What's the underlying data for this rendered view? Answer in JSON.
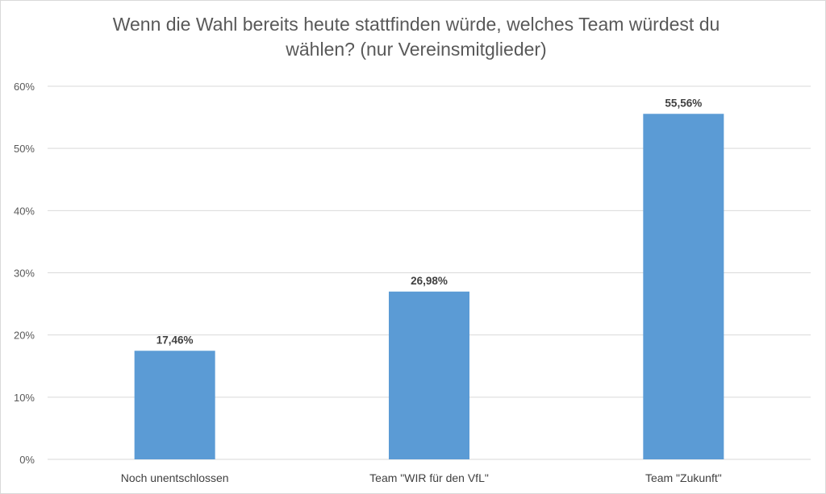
{
  "chart_data": {
    "type": "bar",
    "title": "Wenn die Wahl bereits heute stattfinden würde, welches Team würdest du wählen? (nur Vereinsmitglieder)",
    "categories": [
      "Noch unentschlossen",
      "Team \"WIR für den VfL\"",
      "Team \"Zukunft\""
    ],
    "values": [
      17.46,
      26.98,
      55.56
    ],
    "data_labels": [
      "17,46%",
      "26,98%",
      "55,56%"
    ],
    "y_ticks": [
      "0%",
      "10%",
      "20%",
      "30%",
      "40%",
      "50%",
      "60%"
    ],
    "ylim": [
      0,
      60
    ],
    "grid": true,
    "xlabel": "",
    "ylabel": "",
    "bar_color": "#5b9bd5",
    "grid_color": "#d9d9d9"
  }
}
